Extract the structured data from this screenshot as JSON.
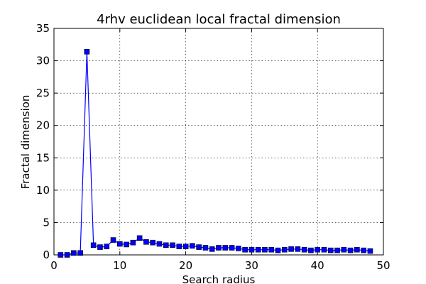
{
  "chart_data": {
    "type": "line",
    "title": "4rhv euclidean local fractal dimension",
    "xlabel": "Search radius",
    "ylabel": "Fractal dimension",
    "xlim": [
      0,
      50
    ],
    "ylim": [
      0,
      35
    ],
    "xticks": [
      0,
      10,
      20,
      30,
      40,
      50
    ],
    "yticks": [
      0,
      5,
      10,
      15,
      20,
      25,
      30,
      35
    ],
    "grid": true,
    "line_color": "#0000ff",
    "marker": "square",
    "x": [
      1,
      2,
      3,
      4,
      5,
      6,
      7,
      8,
      9,
      10,
      11,
      12,
      13,
      14,
      15,
      16,
      17,
      18,
      19,
      20,
      21,
      22,
      23,
      24,
      25,
      26,
      27,
      28,
      29,
      30,
      31,
      32,
      33,
      34,
      35,
      36,
      37,
      38,
      39,
      40,
      41,
      42,
      43,
      44,
      45,
      46,
      47,
      48
    ],
    "y": [
      0.0,
      0.0,
      0.3,
      0.3,
      31.4,
      1.5,
      1.2,
      1.3,
      2.3,
      1.7,
      1.6,
      1.9,
      2.6,
      2.0,
      1.9,
      1.7,
      1.5,
      1.5,
      1.3,
      1.3,
      1.4,
      1.2,
      1.1,
      0.9,
      1.1,
      1.1,
      1.1,
      1.0,
      0.8,
      0.8,
      0.8,
      0.8,
      0.8,
      0.7,
      0.8,
      0.9,
      0.9,
      0.8,
      0.7,
      0.8,
      0.8,
      0.7,
      0.7,
      0.8,
      0.7,
      0.8,
      0.7,
      0.6
    ]
  }
}
